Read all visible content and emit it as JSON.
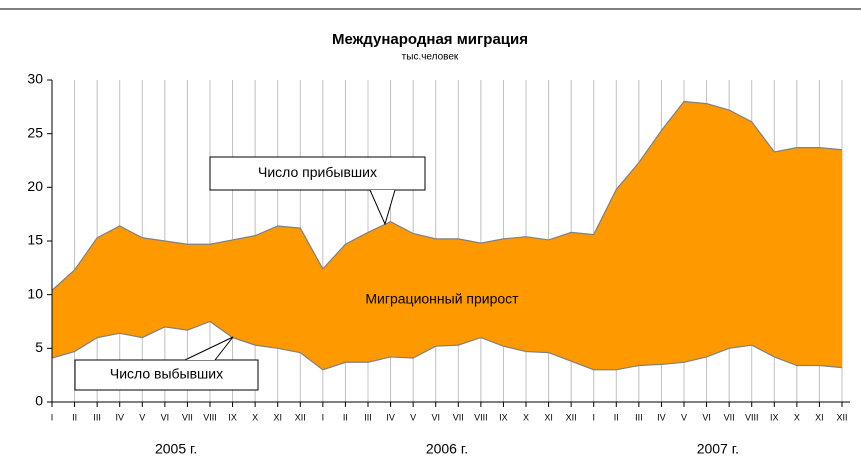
{
  "chart_data": {
    "type": "area-between",
    "title": "Международная миграция",
    "subtitle": "тыс.человек",
    "categories": [
      "I",
      "II",
      "III",
      "IV",
      "V",
      "VI",
      "VII",
      "VIII",
      "IX",
      "X",
      "XI",
      "XII",
      "I",
      "II",
      "III",
      "IV",
      "V",
      "VI",
      "VII",
      "VIII",
      "IX",
      "X",
      "XI",
      "XII",
      "I",
      "II",
      "III",
      "IV",
      "V",
      "VI",
      "VII",
      "VIII",
      "IX",
      "X",
      "XI",
      "XII"
    ],
    "years": [
      "2005 г.",
      "2006 г.",
      "2007 г."
    ],
    "series": [
      {
        "name": "Число прибывших",
        "color": "#808080",
        "values": [
          10.4,
          12.3,
          15.3,
          16.4,
          15.3,
          15.0,
          14.7,
          14.7,
          15.1,
          15.5,
          16.4,
          16.2,
          12.4,
          14.7,
          15.8,
          16.8,
          15.7,
          15.2,
          15.2,
          14.8,
          15.2,
          15.4,
          15.1,
          15.8,
          15.6,
          19.8,
          22.3,
          25.3,
          28.0,
          27.8,
          27.2,
          26.1,
          23.3,
          23.7,
          23.7,
          23.5
        ]
      },
      {
        "name": "Число выбывших",
        "color": "#808080",
        "values": [
          4.1,
          4.7,
          6.0,
          6.4,
          6.0,
          7.0,
          6.7,
          7.5,
          6.0,
          5.3,
          5.0,
          4.6,
          3.0,
          3.7,
          3.7,
          4.2,
          4.1,
          5.2,
          5.3,
          6.0,
          5.2,
          4.7,
          4.6,
          3.8,
          3.0,
          3.0,
          3.4,
          3.5,
          3.7,
          4.2,
          5.0,
          5.3,
          4.2,
          3.4,
          3.4,
          3.2
        ]
      }
    ],
    "fill_color": "#ff9900",
    "fill_label": "Миграционный прирост",
    "ylim": [
      0,
      30
    ],
    "yticks": [
      0,
      5,
      10,
      15,
      20,
      25,
      30
    ],
    "grid": true
  }
}
